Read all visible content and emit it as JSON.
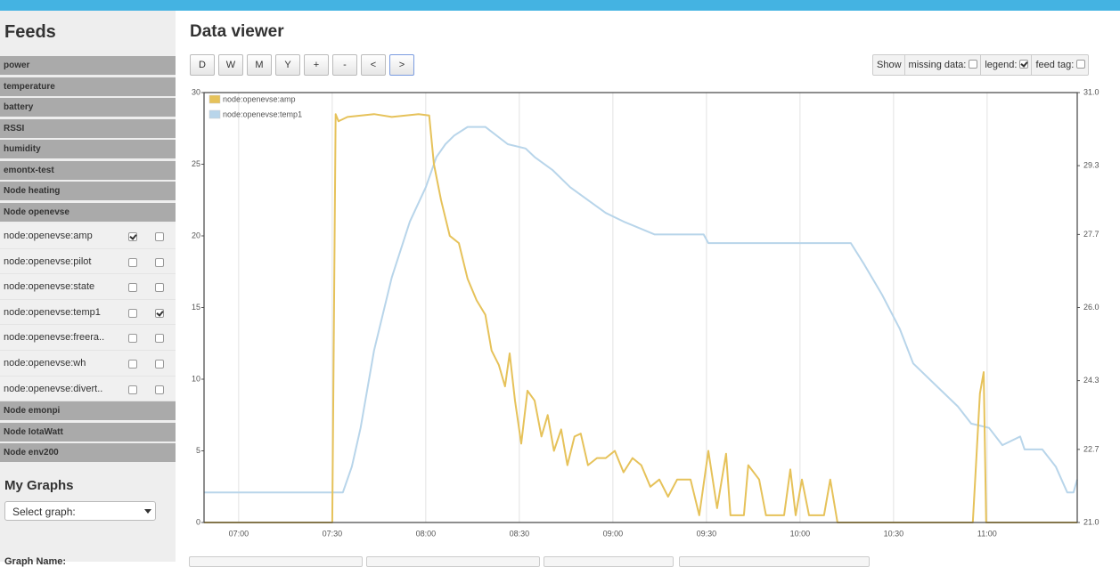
{
  "sidebar": {
    "title": "Feeds",
    "groups_before": [
      "power",
      "temperature",
      "battery",
      "RSSI",
      "humidity",
      "emontx-test",
      "Node heating"
    ],
    "open_group": {
      "name": "Node openevse",
      "feeds": [
        {
          "name": "node:openevse:amp",
          "left": true,
          "right": false
        },
        {
          "name": "node:openevse:pilot",
          "left": false,
          "right": false
        },
        {
          "name": "node:openevse:state",
          "left": false,
          "right": false
        },
        {
          "name": "node:openevse:temp1",
          "left": false,
          "right": true
        },
        {
          "name": "node:openevse:freera..",
          "left": false,
          "right": false
        },
        {
          "name": "node:openevse:wh",
          "left": false,
          "right": false
        },
        {
          "name": "node:openevse:divert..",
          "left": false,
          "right": false
        }
      ]
    },
    "groups_after": [
      "Node emonpi",
      "Node IotaWatt",
      "Node env200"
    ],
    "graphs_title": "My Graphs",
    "select_placeholder": "Select graph:",
    "graph_name_label": "Graph Name:"
  },
  "header": {
    "title": "Data viewer",
    "buttons": [
      "D",
      "W",
      "M",
      "Y",
      "+",
      "-",
      "<",
      ">"
    ]
  },
  "show": {
    "label": "Show",
    "options": [
      {
        "label": "missing data:",
        "checked": false
      },
      {
        "label": "legend:",
        "checked": true
      },
      {
        "label": "feed tag:",
        "checked": false
      }
    ]
  },
  "chart_data": {
    "type": "line",
    "grid": true,
    "legend": "top-left",
    "xlim": [
      408.9,
      688.9
    ],
    "xticks": [
      {
        "value": 420,
        "label": "07:00"
      },
      {
        "value": 450,
        "label": "07:30"
      },
      {
        "value": 480,
        "label": "08:00"
      },
      {
        "value": 510,
        "label": "08:30"
      },
      {
        "value": 540,
        "label": "09:00"
      },
      {
        "value": 570,
        "label": "09:30"
      },
      {
        "value": 600,
        "label": "10:00"
      },
      {
        "value": 630,
        "label": "10:30"
      },
      {
        "value": 660,
        "label": "11:00"
      }
    ],
    "ylim": [
      0,
      30
    ],
    "yticks": [
      0,
      5,
      10,
      15,
      20,
      25,
      30
    ],
    "y2lim": [
      21,
      31
    ],
    "y2ticks": [
      {
        "value": 21,
        "label": "21.0"
      },
      22.7,
      24.3,
      {
        "value": 26,
        "label": "26.0"
      },
      27.7,
      29.3,
      {
        "value": 31,
        "label": "31.0"
      }
    ],
    "series": [
      {
        "name": "node:openevse:amp",
        "color": "#e6c25a",
        "x": [
          408.9,
          450,
          451.1,
          452,
          454.9,
          463.4,
          469.1,
          477.7,
          481.1,
          482.6,
          484.9,
          487.7,
          490.6,
          493.4,
          496.3,
          499.1,
          501.1,
          503.4,
          505.4,
          506.9,
          508.6,
          510.6,
          512.6,
          514.9,
          517.1,
          519.1,
          521.1,
          523.4,
          525.4,
          527.7,
          529.7,
          532,
          534.9,
          537.7,
          540.6,
          543.4,
          546.3,
          549.1,
          552,
          554.9,
          557.7,
          560.6,
          564.9,
          567.7,
          570.6,
          573.4,
          576.3,
          577.7,
          582,
          583.4,
          586.9,
          589.1,
          594.9,
          596.9,
          598.6,
          600.6,
          602.9,
          607.7,
          609.7,
          612,
          655.4,
          657.7,
          658.9,
          659.7,
          688.9
        ],
        "values": [
          0,
          0,
          28.5,
          28,
          28.3,
          28.5,
          28.3,
          28.5,
          28.4,
          25,
          22.5,
          20,
          19.5,
          17,
          15.5,
          14.5,
          12,
          11,
          9.5,
          11.8,
          8.5,
          5.5,
          9.2,
          8.5,
          6,
          7.5,
          5,
          6.5,
          4,
          6,
          6.2,
          4,
          4.5,
          4.5,
          5,
          3.5,
          4.5,
          4,
          2.5,
          3,
          1.8,
          3,
          3,
          0.5,
          5,
          1,
          4.8,
          0.5,
          0.5,
          4,
          3,
          0.5,
          0.5,
          3.7,
          0.5,
          3,
          0.5,
          0.5,
          3,
          0,
          0,
          9,
          10.5,
          0,
          0
        ]
      },
      {
        "name": "node:openevse:temp1",
        "color": "#b8d5ea",
        "axis": "y2",
        "x": [
          408.9,
          453.4,
          456.3,
          459.1,
          463.4,
          469.1,
          474.9,
          480,
          483.4,
          486.3,
          489.1,
          493.4,
          499.1,
          506.3,
          512,
          514.9,
          520.6,
          526.3,
          532,
          537.7,
          543.4,
          553.4,
          569.1,
          570.6,
          616.3,
          620.6,
          626.3,
          632,
          636.3,
          643.4,
          650.6,
          654.9,
          660.6,
          664.9,
          670.6,
          672,
          677.7,
          682,
          685.7,
          687.7,
          688.9
        ],
        "values": [
          21.7,
          21.7,
          22.3,
          23.2,
          25,
          26.7,
          28,
          28.8,
          29.5,
          29.8,
          30,
          30.2,
          30.2,
          29.8,
          29.7,
          29.5,
          29.2,
          28.8,
          28.5,
          28.2,
          28,
          27.7,
          27.7,
          27.5,
          27.5,
          27,
          26.3,
          25.5,
          24.7,
          24.2,
          23.7,
          23.3,
          23.2,
          22.8,
          23,
          22.7,
          22.7,
          22.3,
          21.7,
          21.7,
          22
        ]
      }
    ]
  }
}
